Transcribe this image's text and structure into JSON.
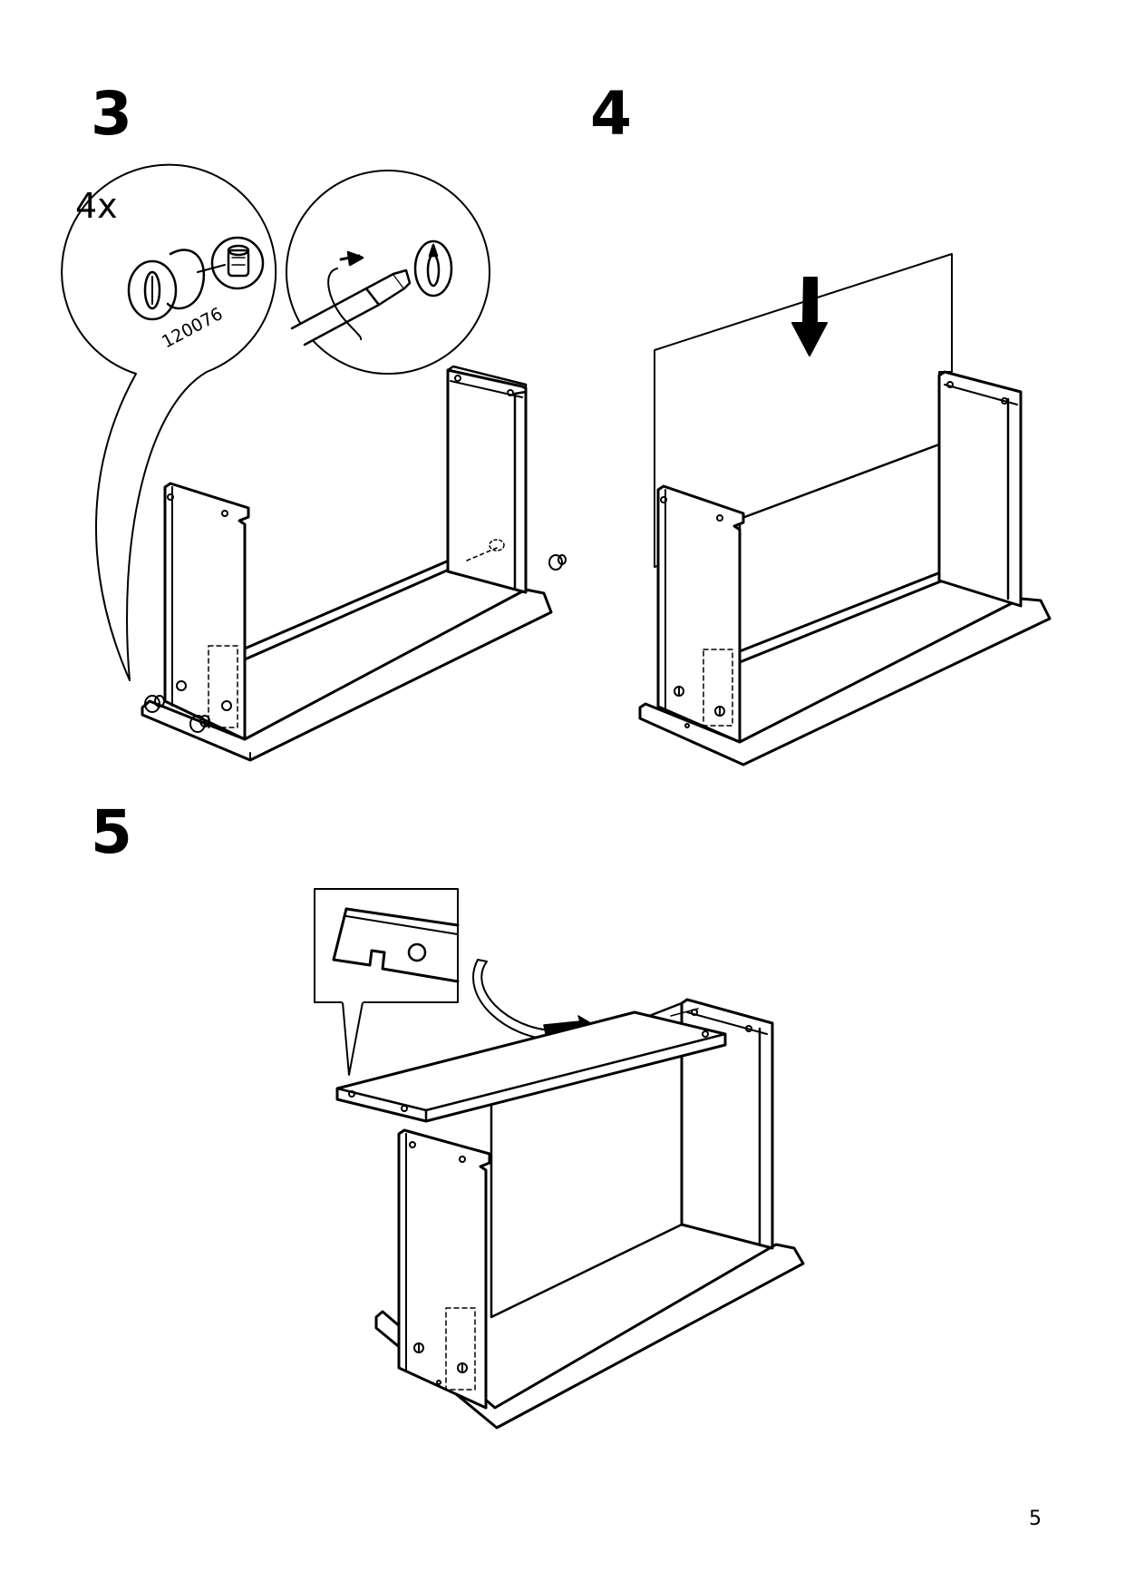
{
  "steps": {
    "step3": {
      "number": "3",
      "quantity": "4x",
      "part_number": "120076"
    },
    "step4": {
      "number": "4"
    },
    "step5": {
      "number": "5"
    }
  },
  "page_number": "5"
}
